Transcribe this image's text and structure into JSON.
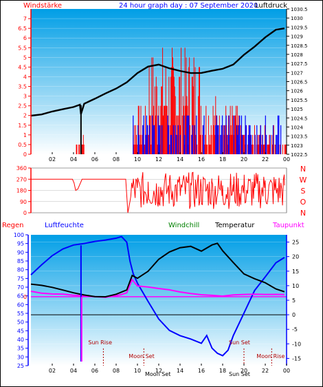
{
  "header": {
    "title": "24 hour graph day : 07 September 2020",
    "left_label": "Windstärke",
    "right_label": "Luftdruck"
  },
  "colors": {
    "wind": "#ff0000",
    "gust": "#0000ff",
    "pressure": "#000000",
    "humidity": "#0000ff",
    "windchill": "#008000",
    "temperature": "#000000",
    "dewpoint": "#ff00ff",
    "rain": "#ff0000",
    "plot_top": "#00a0e0",
    "plot_bottom": "#ffffff",
    "astro": "#b00000"
  },
  "x_ticks": [
    "02",
    "04",
    "06",
    "08",
    "10",
    "12",
    "14",
    "16",
    "18",
    "20",
    "22",
    "00"
  ],
  "chart_data": [
    {
      "type": "line",
      "name": "wind-pressure",
      "title": "24 hour graph day : 07 September 2020",
      "ylabel_left": "Windstärke",
      "ylabel_right": "Luftdruck",
      "ylim_left": [
        0,
        7.5
      ],
      "ylim_right": [
        1022.5,
        1030.5
      ],
      "left_ticks": [
        "0",
        "0.5",
        "1",
        "1.5",
        "2",
        "2.5",
        "3",
        "3.5",
        "4",
        "4.5",
        "5",
        "5.5",
        "6",
        "6.5",
        "7"
      ],
      "right_ticks": [
        "1022.5",
        "1023",
        "1023.5",
        "1024",
        "1024.5",
        "1025",
        "1025.5",
        "1026",
        "1026.5",
        "1027",
        "1027.5",
        "1028",
        "1028.5",
        "1029",
        "1029.5",
        "1030",
        "1030.5"
      ],
      "pressure_series": {
        "x": [
          0,
          1,
          2,
          3,
          4,
          4.6,
          4.7,
          5,
          6,
          7,
          8,
          9,
          10,
          11,
          12,
          13,
          14,
          15,
          16,
          17,
          18,
          19,
          20,
          21,
          22,
          23,
          23.8
        ],
        "y": [
          1024.6,
          1024.75,
          1024.9,
          1025.0,
          1025.1,
          1025.2,
          1024.7,
          1025.25,
          1025.5,
          1025.8,
          1026.15,
          1026.5,
          1026.95,
          1027.35,
          1027.4,
          1027.25,
          1027.1,
          1027.0,
          1027.0,
          1027.05,
          1027.15,
          1027.5,
          1028.0,
          1028.45,
          1028.9,
          1029.3,
          1029.4
        ]
      },
      "wind_levels": [
        0,
        0.5,
        1,
        1.5,
        2,
        2.5,
        3,
        3.5,
        4,
        4.5,
        5,
        5.5,
        6,
        6.5,
        7
      ],
      "gust_levels": [
        0,
        0.5,
        1,
        1.5,
        2
      ]
    },
    {
      "type": "scatter",
      "name": "wind-direction",
      "ylim": [
        0,
        360
      ],
      "left_ticks": [
        "0",
        "90",
        "180",
        "270",
        "360"
      ],
      "compass_labels": [
        "N",
        "W",
        "S",
        "O",
        "N"
      ],
      "series": [
        {
          "x": [
            0.0,
            3.9,
            4.05,
            4.2,
            4.4,
            4.8,
            8.9,
            9.1,
            10.0,
            11.0,
            12.0,
            13.0,
            14.0,
            15.0,
            16.0,
            17.0,
            18.0,
            19.0,
            20.0,
            21.0,
            22.0,
            23.0,
            23.8
          ],
          "y": [
            270,
            270,
            240,
            180,
            190,
            270,
            270,
            0,
            200,
            250,
            210,
            260,
            190,
            240,
            200,
            250,
            220,
            170,
            230,
            200,
            260,
            210,
            220
          ]
        }
      ]
    },
    {
      "type": "line",
      "name": "temperature-humidity",
      "legend": [
        "Regen",
        "Luftfeuchte",
        "Windchill",
        "Temperatur",
        "Taupunkt"
      ],
      "ylim_left": [
        25,
        100
      ],
      "ylim_right": [
        -17.5,
        27.5
      ],
      "left_ticks": [
        "25",
        "30",
        "35",
        "40",
        "45",
        "50",
        "55",
        "60",
        "65",
        "70",
        "75",
        "80",
        "85",
        "90",
        "95",
        "100"
      ],
      "right_ticks": [
        "-15",
        "-10",
        "-5",
        "0",
        "5",
        "10",
        "15",
        "20",
        "25"
      ],
      "rain_zero_label": "0",
      "series": [
        {
          "name": "Luftfeuchte",
          "x": [
            0,
            1,
            2,
            3,
            4,
            5,
            6,
            7,
            8,
            8.5,
            9,
            9.3,
            9.6,
            10,
            11,
            12,
            13,
            14,
            15,
            16,
            16.5,
            17,
            17.5,
            18,
            18.5,
            19,
            20,
            21,
            22,
            23,
            23.8
          ],
          "y": [
            77,
            83,
            88,
            92,
            94,
            95,
            96,
            97,
            98,
            99,
            96,
            85,
            78,
            72,
            62,
            52,
            45,
            42,
            40,
            38,
            42,
            35,
            32,
            31,
            34,
            42,
            55,
            68,
            76,
            84,
            87
          ]
        },
        {
          "name": "Temperatur",
          "x": [
            0,
            1,
            2,
            3,
            4,
            5,
            6,
            7,
            8,
            9,
            9.5,
            10,
            11,
            12,
            13,
            14,
            15,
            16,
            17,
            17.5,
            18,
            19,
            20,
            21,
            22,
            23,
            23.8
          ],
          "y": [
            10.5,
            10,
            9.5,
            8.5,
            7.5,
            6.8,
            6.3,
            6.2,
            7.0,
            8.5,
            13.5,
            12.5,
            15,
            19,
            21.5,
            23,
            23.5,
            22,
            24,
            24.5,
            22,
            18,
            14,
            12.5,
            11,
            9,
            8
          ]
        },
        {
          "name": "Taupunkt",
          "x": [
            0,
            1,
            2,
            3,
            4,
            5,
            6,
            7,
            8,
            8.5,
            9,
            9.5,
            10,
            11,
            12,
            13,
            14,
            15,
            16,
            17,
            18,
            19,
            20,
            21,
            22,
            23,
            23.8
          ],
          "y": [
            8,
            7.5,
            7.2,
            7,
            6.8,
            6.5,
            6.3,
            6.1,
            6.5,
            7,
            7.5,
            12,
            10,
            9.5,
            9,
            8.5,
            7.8,
            7.3,
            7,
            6.8,
            6.3,
            6.8,
            7,
            7,
            6.9,
            7,
            7
          ]
        }
      ],
      "rain_value": 0,
      "astro": [
        {
          "label": "Sun Rise",
          "x": 6.8
        },
        {
          "label": "Moon Set",
          "x": 10.6
        },
        {
          "label": "Sun Set",
          "x": 20.0
        },
        {
          "label": "Moon Rise",
          "x": 22.6
        }
      ],
      "x_overlaid_labels": [
        "Moon Set",
        "Sun Set"
      ]
    }
  ]
}
